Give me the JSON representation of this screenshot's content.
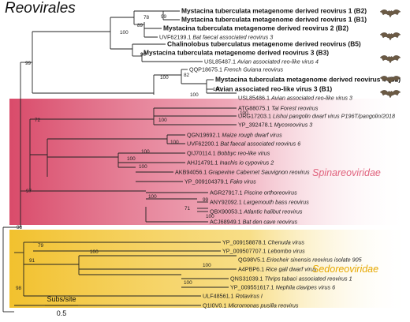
{
  "title": "Reovirales",
  "colors": {
    "spinareo_bg": "#d94b6a",
    "spinareo_label": "#e0617c",
    "sedoreo_bg": "#f2c12e",
    "sedoreo_label": "#e6a800",
    "branch": "#222222"
  },
  "clades": {
    "spinareoviridae": "Spinareoviridae",
    "sedoreoviridae": "Sedoreoviridae"
  },
  "scale_bar": {
    "label": "Subs/site",
    "value": "0.5"
  },
  "icons": {
    "bat": "bat-icon"
  },
  "tips": [
    {
      "acc": "",
      "name": "Mystacina tuberculata metagenome derived reovirus 1 (B2)",
      "bold": true,
      "bat": true
    },
    {
      "acc": "",
      "name": "Mystacina tuberculata metagenome derived reovirus 1 (B1)",
      "bold": true,
      "bat": true
    },
    {
      "acc": "",
      "name": "Mystacina tuberculata metagenome derived reovirus 2 (B2)",
      "bold": true,
      "bat": false
    },
    {
      "acc": "UVF62199.1",
      "name": "Bat faecal associated reovirus 3",
      "bold": false,
      "bat": false
    },
    {
      "acc": "",
      "name": "Chalinolobus tuberculatus metagenome derived reovirus (B5)",
      "bold": true,
      "bat": true
    },
    {
      "acc": "",
      "name": "Mystacina tuberculata metagenome derived reovirus 3 (B3)",
      "bold": true,
      "bat": true
    },
    {
      "acc": "USL85487.1",
      "name": "Avian associated reo-like virus 4",
      "bold": false,
      "bat": false
    },
    {
      "acc": "QQP18675.1",
      "name": "French Guiana reovirus",
      "bold": false,
      "bat": false
    },
    {
      "acc": "",
      "name": "Mystacina tuberculata metagenome derived reovirus 4 (B2)",
      "bold": true,
      "bat": true
    },
    {
      "acc": "",
      "name": "Avian associated reo-like virus 3 (B1)",
      "bold": true,
      "bat": true
    },
    {
      "acc": "USL85486.1",
      "name": "Avian associated reo-like virus 3",
      "bold": false,
      "bat": false
    },
    {
      "acc": "ATG88075.1",
      "name": "Tai Forest reovirus",
      "bold": false,
      "bat": false
    },
    {
      "acc": "URG17203.1",
      "name": "Lishui pangolin dwarf virus P196T/pangolin/2018",
      "bold": false,
      "bat": false
    },
    {
      "acc": "YP_392478.1",
      "name": "Mycoreovirus 3",
      "bold": false,
      "bat": false
    },
    {
      "acc": "QGN19692.1",
      "name": "Maize rough dwarf virus",
      "bold": false,
      "bat": false
    },
    {
      "acc": "UVF62200.1",
      "name": "Bat faecal associated reovirus 6",
      "bold": false,
      "bat": false
    },
    {
      "acc": "QIJ70114.1",
      "name": "Bobbyc reo-like virus",
      "bold": false,
      "bat": false
    },
    {
      "acc": "AHJ14791.1",
      "name": "Inachis io cypovirus 2",
      "bold": false,
      "bat": false
    },
    {
      "acc": "AKB94056.1",
      "name": "Grapevine Cabernet Sauvignon reovirus",
      "bold": false,
      "bat": false
    },
    {
      "acc": "YP_009104379.1",
      "name": "Fako virus",
      "bold": false,
      "bat": false
    },
    {
      "acc": "AGR27917.1",
      "name": "Piscine orthoreovirus",
      "bold": false,
      "bat": false
    },
    {
      "acc": "ANY92092.1",
      "name": "Largemouth bass reovirus",
      "bold": false,
      "bat": false
    },
    {
      "acc": "QBX90053.1",
      "name": "Atlantic halibut reovirus",
      "bold": false,
      "bat": false
    },
    {
      "acc": "ACJ68949.1",
      "name": "Bat den cave reovirus",
      "bold": false,
      "bat": false
    },
    {
      "acc": "YP_009158878.1",
      "name": "Chenuda virus",
      "bold": false,
      "bat": false
    },
    {
      "acc": "YP_009507707.1",
      "name": "Lebombo virus",
      "bold": false,
      "bat": false
    },
    {
      "acc": "QG98V5.1",
      "name": "Eriocheir sinensis reovirus isolate 905",
      "bold": false,
      "bat": false
    },
    {
      "acc": "A4PBP6.1",
      "name": "Rice gall dwarf virus",
      "bold": false,
      "bat": false
    },
    {
      "acc": "QNS31039.1",
      "name": "Thrips tabaci associated reovirus 1",
      "bold": false,
      "bat": false
    },
    {
      "acc": "YP_009551617.1",
      "name": "Nephila clavipes virus 6",
      "bold": false,
      "bat": false
    },
    {
      "acc": "ULF48561.1",
      "name": "Rotavirus I",
      "bold": false,
      "bat": false
    },
    {
      "acc": "Q1I0V0.1",
      "name": "Micromonas pusilla reovirus",
      "bold": false,
      "bat": false
    }
  ],
  "bootstraps": [
    "99",
    "78",
    "89",
    "100",
    "90",
    "99",
    "100",
    "82",
    "100",
    "100",
    "72",
    "100",
    "100",
    "97",
    "100",
    "100",
    "100",
    "100",
    "98",
    "100",
    "99",
    "71",
    "100",
    "79",
    "100",
    "91",
    "100",
    "100",
    "98"
  ]
}
